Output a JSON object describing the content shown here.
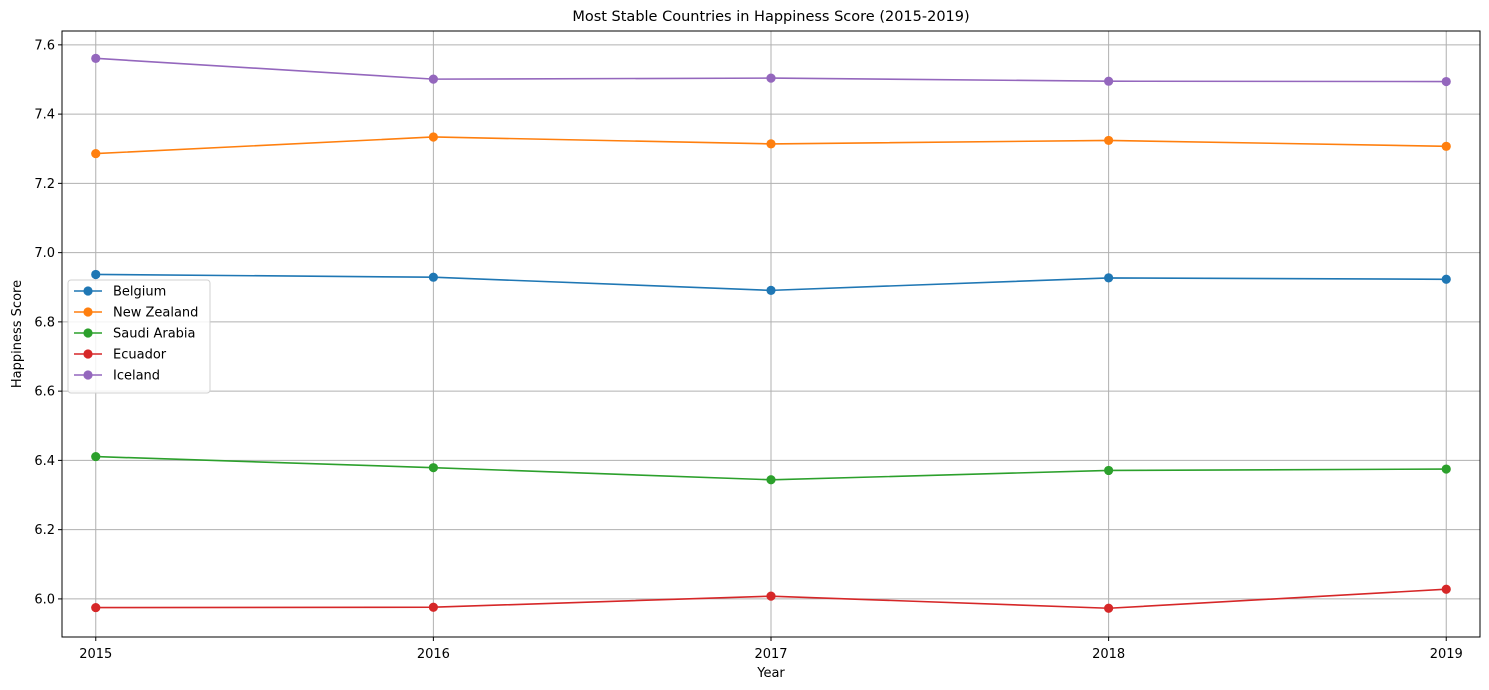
{
  "chart_data": {
    "type": "line",
    "title": "Most Stable Countries in Happiness Score (2015-2019)",
    "xlabel": "Year",
    "ylabel": "Happiness Score",
    "x": [
      2015,
      2016,
      2017,
      2018,
      2019
    ],
    "x_tick_labels": [
      "2015",
      "2016",
      "2017",
      "2018",
      "2019"
    ],
    "xlim": [
      2014.9,
      2019.1
    ],
    "ylim": [
      5.89,
      7.64
    ],
    "y_ticks": [
      6.0,
      6.2,
      6.4,
      6.6,
      6.8,
      7.0,
      7.2,
      7.4,
      7.6
    ],
    "y_tick_labels": [
      "6.0",
      "6.2",
      "6.4",
      "6.6",
      "6.8",
      "7.0",
      "7.2",
      "7.4",
      "7.6"
    ],
    "grid": true,
    "legend_position": "center-left",
    "markers": "circle",
    "series": [
      {
        "name": "Belgium",
        "color": "#1f77b4",
        "values": [
          6.937,
          6.929,
          6.891,
          6.927,
          6.923
        ]
      },
      {
        "name": "New Zealand",
        "color": "#ff7f0e",
        "values": [
          7.286,
          7.334,
          7.314,
          7.324,
          7.307
        ]
      },
      {
        "name": "Saudi Arabia",
        "color": "#2ca02c",
        "values": [
          6.411,
          6.379,
          6.344,
          6.371,
          6.375
        ]
      },
      {
        "name": "Ecuador",
        "color": "#d62728",
        "values": [
          5.975,
          5.976,
          6.008,
          5.973,
          6.028
        ]
      },
      {
        "name": "Iceland",
        "color": "#9467bd",
        "values": [
          7.561,
          7.501,
          7.504,
          7.495,
          7.494
        ]
      }
    ]
  }
}
